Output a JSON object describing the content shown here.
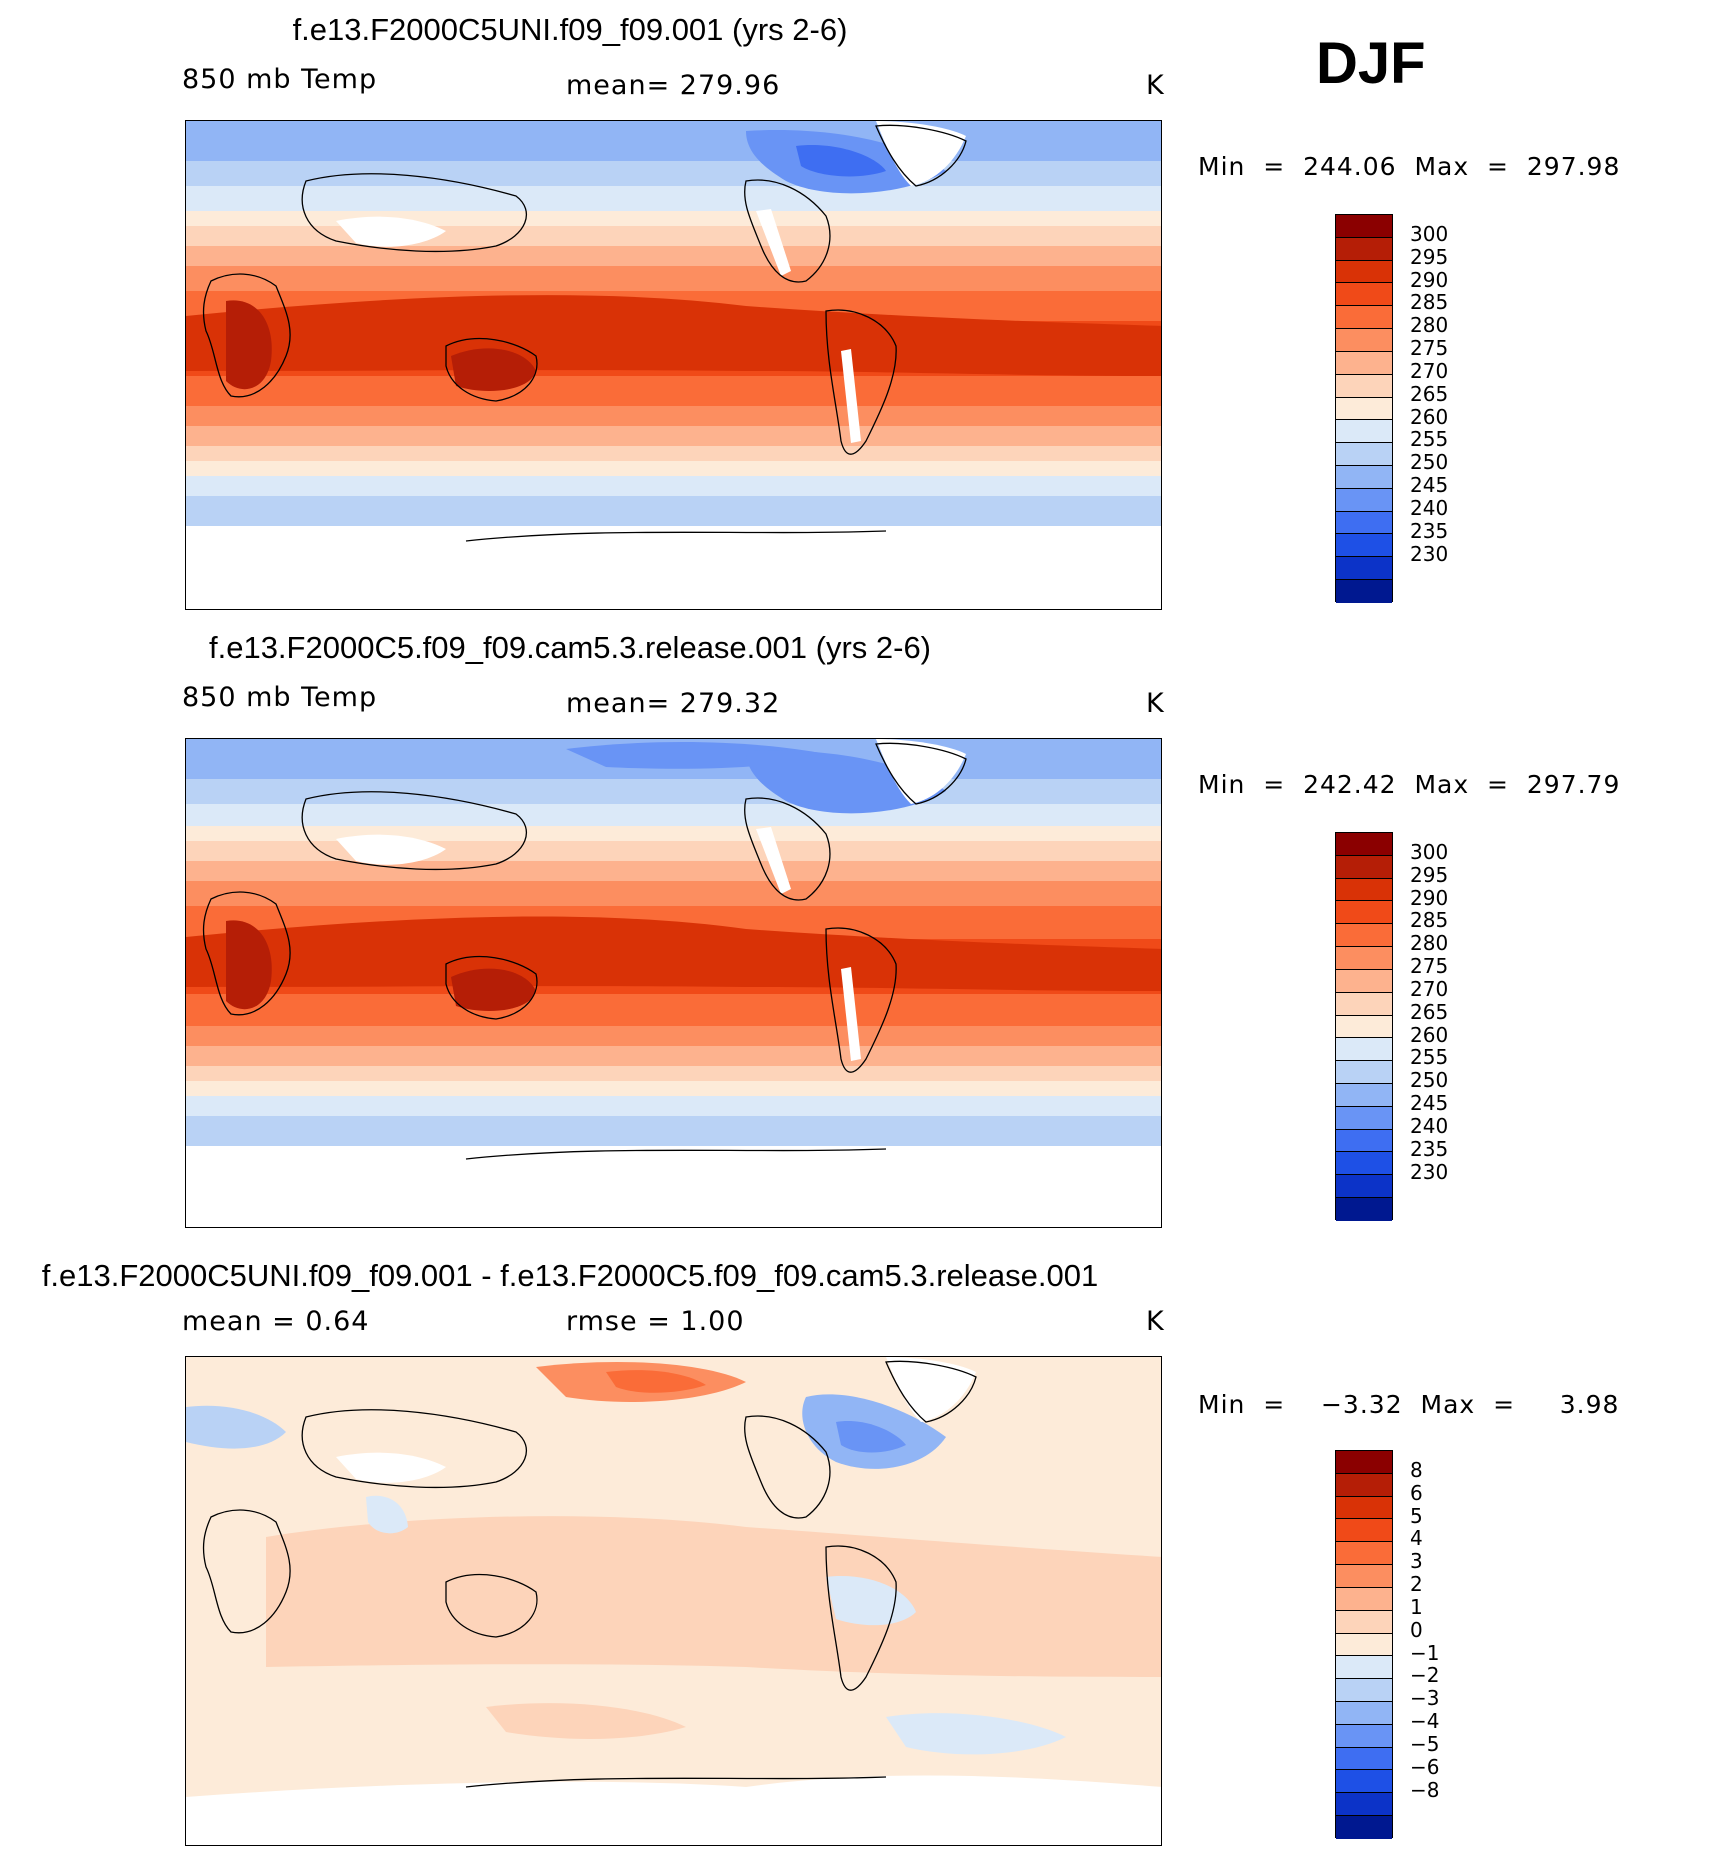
{
  "season": "DJF",
  "panels": [
    {
      "id": "p1",
      "title": "f.e13.F2000C5UNI.f09_f09.001 (yrs 2-6)",
      "left_label": "850 mb Temp",
      "mid_label": "mean=  279.96",
      "units": "K",
      "minmax": "Min  =  244.06  Max  =  297.98",
      "colorbar": {
        "labels": [
          "300",
          "295",
          "290",
          "285",
          "280",
          "275",
          "270",
          "265",
          "260",
          "255",
          "250",
          "245",
          "240",
          "235",
          "230"
        ],
        "colors": [
          "#8B0000",
          "#B51E06",
          "#D93206",
          "#F04A18",
          "#FA6C38",
          "#FC8E60",
          "#FDB28E",
          "#FDD4BA",
          "#FDEBD9",
          "#DBE9F8",
          "#B9D2F5",
          "#91B5F5",
          "#6994F5",
          "#3E6EF2",
          "#1E50E6",
          "#0C33C8",
          "#001890"
        ]
      }
    },
    {
      "id": "p2",
      "title": "f.e13.F2000C5.f09_f09.cam5.3.release.001 (yrs 2-6)",
      "left_label": "850 mb Temp",
      "mid_label": "mean=  279.32",
      "units": "K",
      "minmax": "Min  =  242.42  Max  =  297.79",
      "colorbar": {
        "labels": [
          "300",
          "295",
          "290",
          "285",
          "280",
          "275",
          "270",
          "265",
          "260",
          "255",
          "250",
          "245",
          "240",
          "235",
          "230"
        ],
        "colors": [
          "#8B0000",
          "#B51E06",
          "#D93206",
          "#F04A18",
          "#FA6C38",
          "#FC8E60",
          "#FDB28E",
          "#FDD4BA",
          "#FDEBD9",
          "#DBE9F8",
          "#B9D2F5",
          "#91B5F5",
          "#6994F5",
          "#3E6EF2",
          "#1E50E6",
          "#0C33C8",
          "#001890"
        ]
      }
    },
    {
      "id": "p3",
      "title": "f.e13.F2000C5UNI.f09_f09.001 - f.e13.F2000C5.f09_f09.cam5.3.release.001",
      "left_label": "mean =     0.64",
      "mid_label": "rmse =     1.00",
      "units": "K",
      "minmax": "Min  =    −3.32  Max  =     3.98",
      "colorbar": {
        "labels": [
          "8",
          "6",
          "5",
          "4",
          "3",
          "2",
          "1",
          "0",
          "−1",
          "−2",
          "−3",
          "−4",
          "−5",
          "−6",
          "−8"
        ],
        "colors": [
          "#8B0000",
          "#B51E06",
          "#D93206",
          "#F04A18",
          "#FA6C38",
          "#FC8E60",
          "#FDB28E",
          "#FDD4BA",
          "#FDEBD9",
          "#DBE9F8",
          "#B9D2F5",
          "#91B5F5",
          "#6994F5",
          "#3E6EF2",
          "#1E50E6",
          "#0C33C8",
          "#001890"
        ]
      }
    }
  ]
}
